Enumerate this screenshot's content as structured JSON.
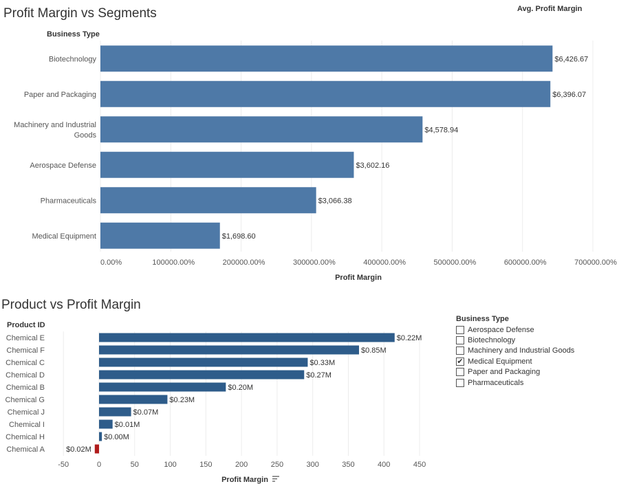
{
  "segments_title": "Profit Margin vs Segments",
  "segments_legend": "Avg. Profit Margin",
  "product_title": "Product vs Profit Margin",
  "filter": {
    "title": "Business Type",
    "items": [
      {
        "label": "Aerospace Defense",
        "checked": false
      },
      {
        "label": "Biotechnology",
        "checked": false
      },
      {
        "label": "Machinery and Industrial Goods",
        "checked": false
      },
      {
        "label": "Medical Equipment",
        "checked": true
      },
      {
        "label": "Paper and Packaging",
        "checked": false
      },
      {
        "label": "Pharmaceuticals",
        "checked": false
      }
    ],
    "check_glyph": "✔"
  },
  "bar_color": "#4e79a7",
  "product_bar_color": "#2e5c8a",
  "negative_bar_color": "#b01c1c",
  "sort_icon": "sort-descending-icon",
  "chart_data": [
    {
      "type": "bar",
      "orientation": "horizontal",
      "title": "Profit Margin vs Segments",
      "category_header": "Business Type",
      "legend_title": "Avg. Profit Margin",
      "categories": [
        [
          "Biotechnology"
        ],
        [
          "Paper and Packaging"
        ],
        [
          "Machinery and Industrial",
          "Goods"
        ],
        [
          "Aerospace Defense"
        ],
        [
          "Pharmaceuticals"
        ],
        [
          "Medical Equipment"
        ]
      ],
      "values": [
        642667,
        639607,
        457894,
        360216,
        306638,
        169860
      ],
      "data_labels": [
        "$6,426.67",
        "$6,396.07",
        "$4,578.94",
        "$3,602.16",
        "$3,066.38",
        "$1,698.60"
      ],
      "xlabel": "Profit Margin",
      "xlim": [
        0,
        700000
      ],
      "xticks": [
        0,
        100000,
        200000,
        300000,
        400000,
        500000,
        600000,
        700000
      ],
      "xtick_labels": [
        "0.00%",
        "100000.00%",
        "200000.00%",
        "300000.00%",
        "400000.00%",
        "500000.00%",
        "600000.00%",
        "700000.00%"
      ],
      "grid": true
    },
    {
      "type": "bar",
      "orientation": "horizontal",
      "title": "Product vs Profit Margin",
      "category_header": "Product ID",
      "categories": [
        "Chemical E",
        "Chemical F",
        "Chemical C",
        "Chemical D",
        "Chemical B",
        "Chemical G",
        "Chemical J",
        "Chemical I",
        "Chemical H",
        "Chemical A"
      ],
      "values": [
        415,
        365,
        293,
        288,
        178,
        96,
        45,
        19,
        4,
        -6
      ],
      "data_labels": [
        "$0.22M",
        "$0.85M",
        "$0.33M",
        "$0.27M",
        "$0.20M",
        "$0.23M",
        "$0.07M",
        "$0.01M",
        "$0.00M",
        "$0.02M"
      ],
      "xlabel": "Profit Margin",
      "xlim": [
        -50,
        450
      ],
      "xticks": [
        -50,
        0,
        50,
        100,
        150,
        200,
        250,
        300,
        350,
        400,
        450
      ],
      "xtick_labels": [
        "-50",
        "0",
        "50",
        "100",
        "150",
        "200",
        "250",
        "300",
        "350",
        "400",
        "450"
      ],
      "grid": true
    }
  ]
}
